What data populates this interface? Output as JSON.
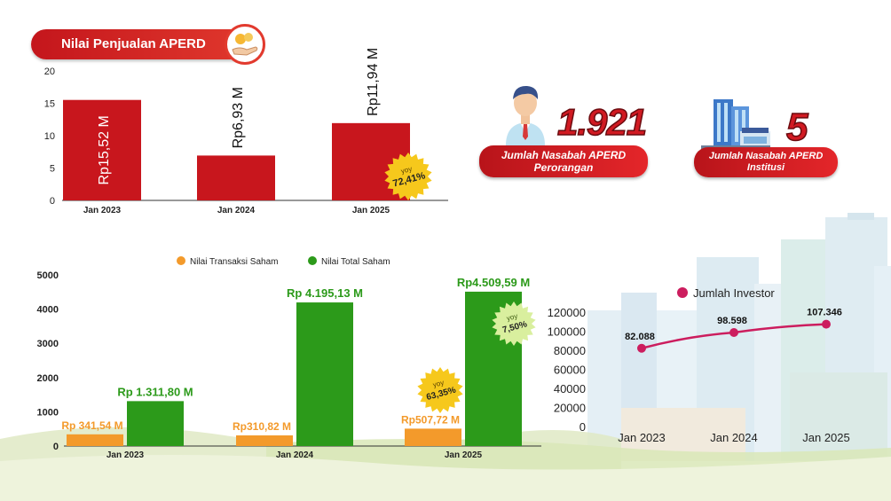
{
  "header": {
    "title": "Nilai Penjualan APERD",
    "icon": "hand-coins-icon"
  },
  "colors": {
    "red": "#c8161d",
    "orange": "#f39a2b",
    "green": "#2c9a1a",
    "magenta": "#cc1d5e",
    "yoy_yellow": "#f6c81c",
    "yoy_green": "#d9ef9e"
  },
  "stats": {
    "individual": {
      "value": "1.921",
      "label_line1": "Jumlah Nasabah APERD",
      "label_line2": "Perorangan",
      "icon": "person-icon"
    },
    "institution": {
      "value": "5",
      "label_line1": "Jumlah Nasabah APERD",
      "label_line2": "Institusi",
      "icon": "building-icon"
    }
  },
  "chart_data": [
    {
      "type": "bar",
      "categories": [
        "Jan 2023",
        "Jan 2024",
        "Jan 2025"
      ],
      "values": [
        15.52,
        6.93,
        11.94
      ],
      "data_labels": [
        "Rp15,52 M",
        "Rp6,93 M",
        "Rp11,94 M"
      ],
      "ylim": [
        0,
        20
      ],
      "yticks": [
        0,
        5,
        10,
        15,
        20
      ],
      "color": "#c8161d",
      "yoy": {
        "prefix": "yoy",
        "value": "72,41%"
      }
    },
    {
      "type": "bar",
      "categories": [
        "Jan 2023",
        "Jan 2024",
        "Jan 2025"
      ],
      "series": [
        {
          "name": "Nilai Transaksi Saham",
          "color": "#f39a2b",
          "values": [
            341.54,
            310.82,
            507.72
          ],
          "labels": [
            "Rp 341,54 M",
            "Rp310,82 M",
            "Rp507,72 M"
          ]
        },
        {
          "name": "Nilai Total Saham",
          "color": "#2c9a1a",
          "values": [
            1311.8,
            4195.13,
            4509.59
          ],
          "labels": [
            "Rp 1.311,80 M",
            "Rp 4.195,13 M",
            "Rp4.509,59 M"
          ]
        }
      ],
      "ylim": [
        0,
        5000
      ],
      "yticks": [
        0,
        1000,
        2000,
        3000,
        4000,
        5000
      ],
      "legend": "top",
      "yoy": [
        {
          "prefix": "yoy",
          "value": "63,35%"
        },
        {
          "prefix": "yoy",
          "value": "7,50%"
        }
      ]
    },
    {
      "type": "line",
      "categories": [
        "Jan 2023",
        "Jan 2024",
        "Jan 2025"
      ],
      "series": [
        {
          "name": "Jumlah Investor",
          "color": "#cc1d5e",
          "values": [
            82088,
            98598,
            107346
          ],
          "labels": [
            "82.088",
            "98.598",
            "107.346"
          ]
        }
      ],
      "ylim": [
        0,
        120000
      ],
      "yticks": [
        "0",
        "20000",
        "40000",
        "60000",
        "80000",
        "100000",
        "120000"
      ],
      "legend": "top"
    }
  ]
}
